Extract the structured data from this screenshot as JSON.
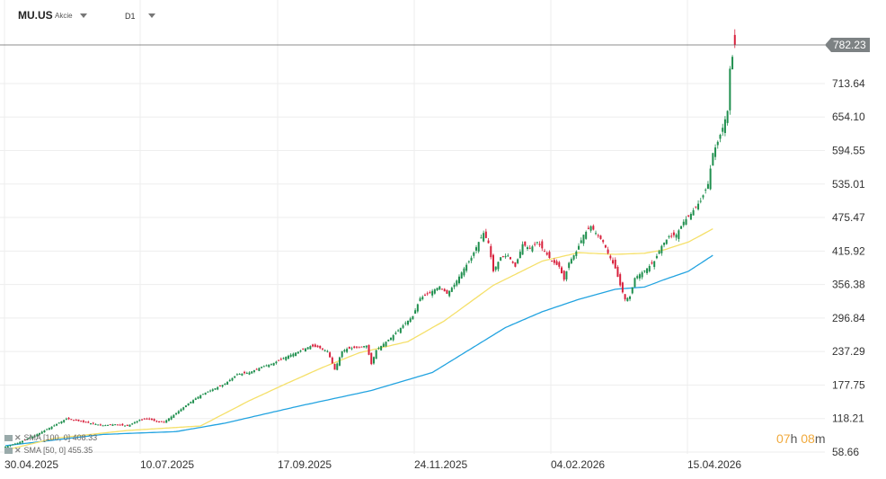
{
  "header": {
    "symbol": "MU.US",
    "instrument_type": "Akcie",
    "timeframe": "D1"
  },
  "countdown": {
    "hours": "07",
    "hour_unit": "h",
    "minutes": "08",
    "minute_unit": "m"
  },
  "legend": [
    {
      "label": "SMA [100, 0] 408.33",
      "color": "#22a3e0"
    },
    {
      "label": "SMA [50, 0] 455.35",
      "color": "#f5e06a"
    }
  ],
  "current_price": {
    "value": "782.23",
    "numeric": 782.23,
    "tag_color": "#7d8284"
  },
  "chart_data": {
    "type": "candlestick",
    "title": "",
    "x_tick_labels": [
      "30.04.2025",
      "10.07.2025",
      "17.09.2025",
      "24.11.2025",
      "04.02.2026",
      "15.04.2026"
    ],
    "y_tick_labels": [
      "713.64",
      "654.10",
      "594.55",
      "535.01",
      "475.47",
      "415.92",
      "356.38",
      "296.84",
      "237.29",
      "177.75",
      "118.21",
      "58.66"
    ],
    "y_tick_values": [
      713.64,
      654.1,
      594.55,
      535.01,
      475.47,
      415.92,
      356.38,
      296.84,
      237.29,
      177.75,
      118.21,
      58.66
    ],
    "ylim": [
      58.66,
      782.23
    ],
    "grid": true,
    "colors": {
      "up": "#1f8f4e",
      "down": "#d8203c",
      "sma100": "#22a3e0",
      "sma50": "#f5e06a",
      "grid": "#eeeeee",
      "current_line": "#666666"
    },
    "close_anchors": [
      [
        0,
        68
      ],
      [
        5,
        75
      ],
      [
        12,
        88
      ],
      [
        20,
        106
      ],
      [
        25,
        118
      ],
      [
        32,
        112
      ],
      [
        40,
        106
      ],
      [
        45,
        108
      ],
      [
        50,
        105
      ],
      [
        55,
        116
      ],
      [
        58,
        118
      ],
      [
        62,
        113
      ],
      [
        65,
        112
      ],
      [
        70,
        128
      ],
      [
        75,
        145
      ],
      [
        80,
        160
      ],
      [
        85,
        170
      ],
      [
        90,
        180
      ],
      [
        95,
        197
      ],
      [
        100,
        200
      ],
      [
        105,
        210
      ],
      [
        110,
        217
      ],
      [
        115,
        228
      ],
      [
        120,
        237
      ],
      [
        125,
        247
      ],
      [
        128,
        245
      ],
      [
        132,
        238
      ],
      [
        135,
        205
      ],
      [
        138,
        238
      ],
      [
        140,
        242
      ],
      [
        145,
        245
      ],
      [
        148,
        248
      ],
      [
        150,
        215
      ],
      [
        152,
        240
      ],
      [
        158,
        262
      ],
      [
        164,
        288
      ],
      [
        167,
        300
      ],
      [
        170,
        332
      ],
      [
        175,
        345
      ],
      [
        178,
        353
      ],
      [
        181,
        340
      ],
      [
        184,
        356
      ],
      [
        188,
        385
      ],
      [
        191,
        404
      ],
      [
        194,
        432
      ],
      [
        196,
        448
      ],
      [
        198,
        430
      ],
      [
        200,
        380
      ],
      [
        203,
        405
      ],
      [
        206,
        408
      ],
      [
        209,
        388
      ],
      [
        212,
        428
      ],
      [
        215,
        420
      ],
      [
        218,
        432
      ],
      [
        221,
        415
      ],
      [
        224,
        398
      ],
      [
        227,
        388
      ],
      [
        229,
        365
      ],
      [
        231,
        395
      ],
      [
        234,
        415
      ],
      [
        237,
        445
      ],
      [
        240,
        460
      ],
      [
        242,
        448
      ],
      [
        245,
        432
      ],
      [
        247,
        412
      ],
      [
        250,
        385
      ],
      [
        252,
        355
      ],
      [
        254,
        330
      ],
      [
        256,
        335
      ],
      [
        258,
        368
      ],
      [
        261,
        378
      ],
      [
        263,
        385
      ],
      [
        266,
        398
      ],
      [
        269,
        425
      ],
      [
        272,
        442
      ],
      [
        275,
        445
      ],
      [
        278,
        468
      ],
      [
        281,
        482
      ],
      [
        283,
        495
      ],
      [
        285,
        505
      ],
      [
        288,
        535
      ],
      [
        290,
        590
      ],
      [
        292,
        610
      ],
      [
        294,
        635
      ],
      [
        296,
        665
      ],
      [
        297,
        740
      ],
      [
        299,
        782.23
      ]
    ],
    "sma50_anchors": [
      [
        0,
        62
      ],
      [
        20,
        83
      ],
      [
        50,
        97
      ],
      [
        80,
        105
      ],
      [
        100,
        150
      ],
      [
        115,
        180
      ],
      [
        130,
        209
      ],
      [
        145,
        235
      ],
      [
        165,
        255
      ],
      [
        180,
        292
      ],
      [
        200,
        355
      ],
      [
        220,
        398
      ],
      [
        235,
        413
      ],
      [
        250,
        410
      ],
      [
        262,
        412
      ],
      [
        270,
        418
      ],
      [
        280,
        432
      ],
      [
        290,
        455.35
      ]
    ],
    "sma100_anchors": [
      [
        0,
        70
      ],
      [
        40,
        90
      ],
      [
        70,
        95
      ],
      [
        90,
        110
      ],
      [
        120,
        140
      ],
      [
        150,
        168
      ],
      [
        175,
        200
      ],
      [
        190,
        240
      ],
      [
        205,
        280
      ],
      [
        220,
        308
      ],
      [
        235,
        330
      ],
      [
        250,
        348
      ],
      [
        262,
        352
      ],
      [
        270,
        365
      ],
      [
        280,
        380
      ],
      [
        290,
        408.33
      ]
    ]
  }
}
